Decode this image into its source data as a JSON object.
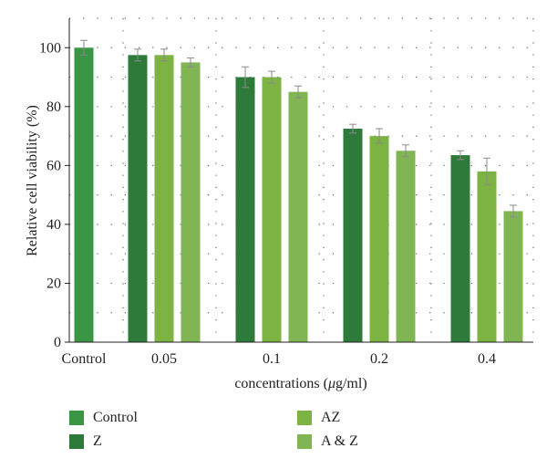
{
  "chart_data": {
    "type": "bar",
    "categories": [
      "Control",
      "0.05",
      "0.1",
      "0.2",
      "0.4"
    ],
    "series": [
      {
        "name": "Control",
        "color": "#3a9645",
        "values": [
          100,
          null,
          null,
          null,
          null
        ],
        "errors": [
          2.5,
          null,
          null,
          null,
          null
        ]
      },
      {
        "name": "Z",
        "color": "#2d7a3a",
        "values": [
          null,
          97.5,
          90,
          72.5,
          63.5
        ],
        "errors": [
          null,
          2,
          3.5,
          1.5,
          1.5
        ]
      },
      {
        "name": "AZ",
        "color": "#7cb342",
        "values": [
          null,
          97.5,
          90,
          70,
          58
        ],
        "errors": [
          null,
          2,
          2,
          2.5,
          4.5
        ]
      },
      {
        "name": "A & Z",
        "color": "#81b554",
        "values": [
          null,
          95,
          85,
          65,
          44.5
        ],
        "errors": [
          null,
          1.5,
          2,
          2,
          2
        ]
      }
    ],
    "xlabel_prefix": "concentrations (",
    "xlabel_mu": "μ",
    "xlabel_suffix": "g/ml)",
    "ylabel": "Relative cell viability (%)",
    "ylim": [
      0,
      110
    ],
    "yticks": [
      "0",
      "20",
      "40",
      "60",
      "80",
      "100"
    ],
    "grid": "dotted",
    "legend_placement": "bottom"
  }
}
